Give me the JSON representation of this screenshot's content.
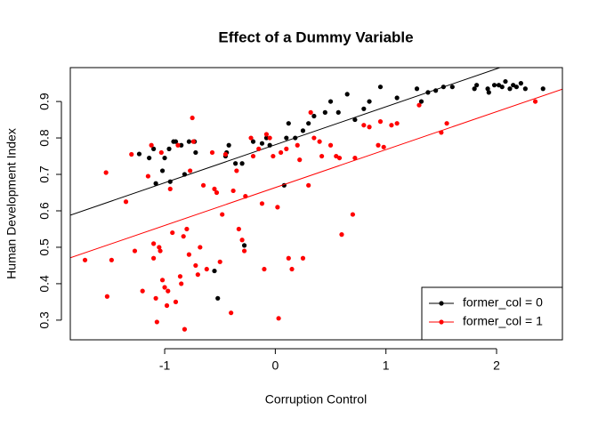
{
  "chart_data": {
    "type": "scatter",
    "title": "Effect of a Dummy Variable",
    "x_label": "Corruption Control",
    "y_label": "Human Development Index",
    "xlim": [
      -1.853,
      2.595
    ],
    "ylim": [
      0.246,
      0.993
    ],
    "xticks": [
      -1,
      0,
      1,
      2
    ],
    "yticks": [
      0.3,
      0.4,
      0.5,
      0.6,
      0.7,
      0.8,
      0.9
    ],
    "legend_position": "bottomright",
    "series": [
      {
        "name": "former_col = 0",
        "color": "#000000",
        "x": [
          -1.23,
          -1.14,
          -1.1,
          -1.08,
          -1.02,
          -1.0,
          -0.96,
          -0.92,
          -0.9,
          -0.85,
          -0.82,
          -0.78,
          -0.73,
          -0.72,
          -0.95,
          -0.55,
          -0.52,
          -0.45,
          -0.44,
          -0.42,
          -0.36,
          -0.3,
          -0.28,
          -0.2,
          -0.12,
          -0.08,
          -0.05,
          0.08,
          0.1,
          0.12,
          0.18,
          0.25,
          0.3,
          0.35,
          0.45,
          0.5,
          0.57,
          0.65,
          0.72,
          0.8,
          0.85,
          0.95,
          1.1,
          1.28,
          1.32,
          1.38,
          1.45,
          1.52,
          1.6,
          1.8,
          1.82,
          1.92,
          1.93,
          1.98,
          2.02,
          2.05,
          2.08,
          2.12,
          2.15,
          2.18,
          2.22,
          2.26,
          2.42
        ],
        "values": [
          0.756,
          0.745,
          0.77,
          0.675,
          0.71,
          0.745,
          0.77,
          0.79,
          0.79,
          0.78,
          0.7,
          0.79,
          0.79,
          0.76,
          0.68,
          0.435,
          0.36,
          0.75,
          0.76,
          0.78,
          0.73,
          0.73,
          0.505,
          0.79,
          0.785,
          0.8,
          0.78,
          0.67,
          0.8,
          0.84,
          0.8,
          0.82,
          0.84,
          0.86,
          0.87,
          0.9,
          0.87,
          0.92,
          0.85,
          0.88,
          0.9,
          0.94,
          0.91,
          0.935,
          0.9,
          0.925,
          0.93,
          0.94,
          0.94,
          0.935,
          0.945,
          0.935,
          0.925,
          0.945,
          0.945,
          0.94,
          0.955,
          0.935,
          0.945,
          0.94,
          0.95,
          0.935,
          0.935
        ],
        "fit_x": [
          -1.853,
          2.03
        ],
        "fit_y": [
          0.588,
          0.993
        ]
      },
      {
        "name": "former_col = 1",
        "color": "#ff0000",
        "x": [
          -1.72,
          -1.53,
          -1.52,
          -1.48,
          -1.35,
          -1.3,
          -1.27,
          -1.2,
          -1.15,
          -1.12,
          -1.1,
          -1.1,
          -1.08,
          -1.07,
          -1.05,
          -1.04,
          -1.03,
          -1.02,
          -1.0,
          -0.98,
          -0.97,
          -0.95,
          -0.93,
          -0.9,
          -0.88,
          -0.86,
          -0.85,
          -0.83,
          -0.82,
          -0.8,
          -0.78,
          -0.77,
          -0.75,
          -0.74,
          -0.72,
          -0.7,
          -0.68,
          -0.65,
          -0.62,
          -0.57,
          -0.55,
          -0.53,
          -0.5,
          -0.48,
          -0.45,
          -0.4,
          -0.38,
          -0.35,
          -0.33,
          -0.3,
          -0.28,
          -0.27,
          -0.22,
          -0.2,
          -0.15,
          -0.12,
          -0.1,
          -0.08,
          -0.05,
          -0.02,
          0.02,
          0.03,
          0.05,
          0.1,
          0.12,
          0.15,
          0.2,
          0.22,
          0.25,
          0.3,
          0.32,
          0.35,
          0.4,
          0.42,
          0.5,
          0.55,
          0.58,
          0.6,
          0.7,
          0.72,
          0.8,
          0.85,
          0.93,
          0.95,
          0.98,
          1.05,
          1.1,
          1.5,
          1.55,
          2.35,
          1.3
        ],
        "values": [
          0.465,
          0.705,
          0.365,
          0.465,
          0.625,
          0.755,
          0.49,
          0.38,
          0.695,
          0.78,
          0.51,
          0.47,
          0.36,
          0.295,
          0.5,
          0.49,
          0.76,
          0.41,
          0.39,
          0.34,
          0.38,
          0.66,
          0.54,
          0.35,
          0.78,
          0.42,
          0.4,
          0.53,
          0.275,
          0.55,
          0.48,
          0.71,
          0.855,
          0.79,
          0.45,
          0.425,
          0.5,
          0.67,
          0.44,
          0.76,
          0.66,
          0.65,
          0.46,
          0.59,
          0.755,
          0.32,
          0.655,
          0.71,
          0.55,
          0.52,
          0.49,
          0.64,
          0.8,
          0.75,
          0.77,
          0.62,
          0.44,
          0.81,
          0.8,
          0.75,
          0.61,
          0.305,
          0.76,
          0.77,
          0.47,
          0.44,
          0.78,
          0.74,
          0.47,
          0.67,
          0.87,
          0.8,
          0.79,
          0.75,
          0.78,
          0.75,
          0.745,
          0.535,
          0.59,
          0.745,
          0.835,
          0.83,
          0.78,
          0.845,
          0.775,
          0.835,
          0.84,
          0.815,
          0.84,
          0.9,
          0.89
        ],
        "fit_x": [
          -1.853,
          2.595
        ],
        "fit_y": [
          0.471,
          0.934
        ]
      }
    ]
  }
}
